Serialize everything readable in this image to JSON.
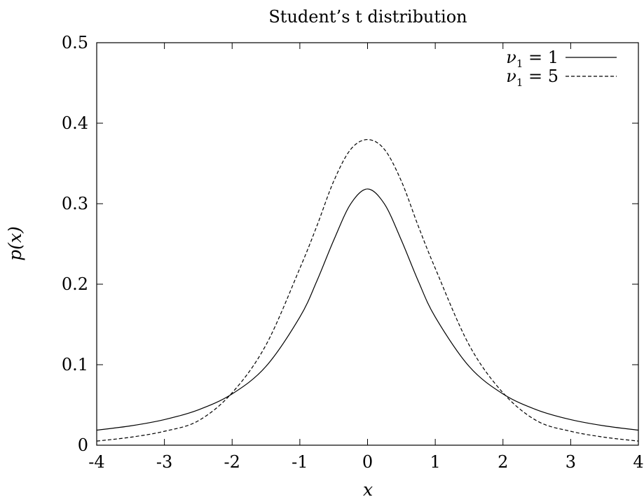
{
  "chart_data": {
    "type": "line",
    "title": "Student’s t distribution",
    "xlabel": "x",
    "ylabel": "p(x)",
    "xlim": [
      -4,
      4
    ],
    "ylim": [
      0,
      0.5
    ],
    "xticks": [
      -4,
      -3,
      -2,
      -1,
      0,
      1,
      2,
      3,
      4
    ],
    "xtick_labels": [
      "-4",
      "-3",
      "-2",
      "-1",
      "0",
      "1",
      "2",
      "3",
      "4"
    ],
    "yticks": [
      0,
      0.1,
      0.2,
      0.3,
      0.4,
      0.5
    ],
    "ytick_labels": [
      "0",
      "0.1",
      "0.2",
      "0.3",
      "0.4",
      "0.5"
    ],
    "grid": false,
    "legend_position": "top-right",
    "x": [
      -4,
      -3.5,
      -3,
      -2.5,
      -2,
      -1.5,
      -1,
      -0.75,
      -0.5,
      -0.25,
      0,
      0.25,
      0.5,
      0.75,
      1,
      1.5,
      2,
      2.5,
      3,
      3.5,
      4
    ],
    "series": [
      {
        "name": "ν1 = 1",
        "legend_symbol": "ν",
        "legend_subscript": "1",
        "legend_rest": " = 1",
        "line_style": "solid",
        "values": [
          0.0187,
          0.024,
          0.0318,
          0.0439,
          0.0637,
          0.0979,
          0.1592,
          0.2037,
          0.2546,
          0.2996,
          0.3183,
          0.2996,
          0.2546,
          0.2037,
          0.1592,
          0.0979,
          0.0637,
          0.0439,
          0.0318,
          0.024,
          0.0187
        ]
      },
      {
        "name": "ν1 = 5",
        "legend_symbol": "ν",
        "legend_subscript": "1",
        "legend_rest": " = 5",
        "line_style": "dashed",
        "values": [
          0.0051,
          0.0099,
          0.0173,
          0.0303,
          0.0651,
          0.1245,
          0.2197,
          0.272,
          0.3279,
          0.3674,
          0.3796,
          0.3674,
          0.3279,
          0.272,
          0.2197,
          0.1245,
          0.0651,
          0.0303,
          0.0173,
          0.0099,
          0.0051
        ]
      }
    ]
  }
}
